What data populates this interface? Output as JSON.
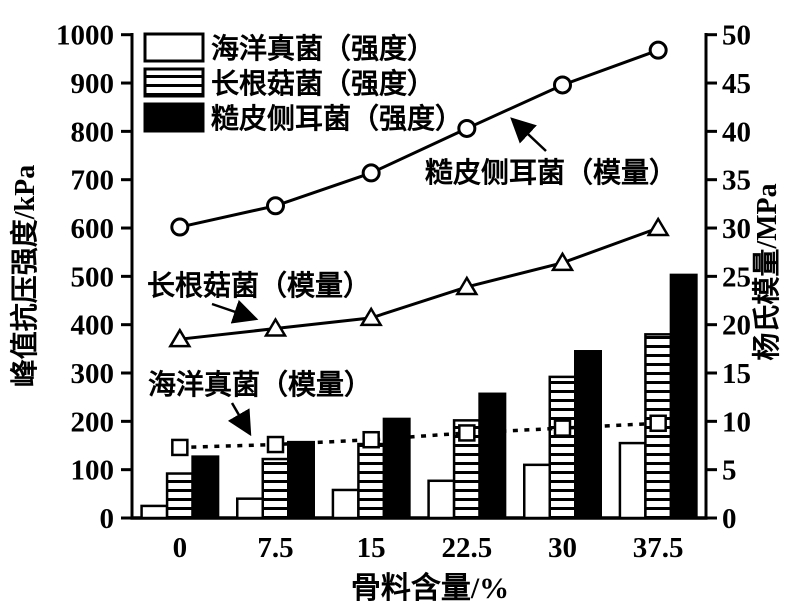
{
  "figure": {
    "background": "#ffffff",
    "foreground": "#000000",
    "annotations": [
      {
        "text": "糙皮侧耳菌（模量）",
        "points_to": "circle-marker line"
      },
      {
        "text": "长根菇菌（模量）",
        "points_to": "triangle-marker line"
      },
      {
        "text": "海洋真菌（模量）",
        "points_to": "square-marker dashed line"
      }
    ]
  },
  "chart_data": {
    "type": "bar+line",
    "grid": false,
    "legend_position": "top-left-inside",
    "categories": [
      "0",
      "7.5",
      "15",
      "22.5",
      "30",
      "37.5"
    ],
    "x_axis": {
      "label": "骨料含量/%"
    },
    "left_axis": {
      "label": "峰值抗压强度/kPa",
      "min": 0,
      "max": 1000,
      "tick_step": 100
    },
    "right_axis": {
      "label": "杨氏模量/MPa",
      "min": 0,
      "max": 50,
      "tick_step": 5
    },
    "bar_series": [
      {
        "name": "海洋真菌（强度）",
        "axis": "left",
        "unit": "kPa",
        "style": "white",
        "values": [
          25,
          40,
          58,
          77,
          110,
          155
        ]
      },
      {
        "name": "长根菇菌（强度）",
        "axis": "left",
        "unit": "kPa",
        "style": "horizontal-stripes",
        "values": [
          92,
          122,
          153,
          202,
          292,
          380
        ]
      },
      {
        "name": "糙皮侧耳菌（强度）",
        "axis": "left",
        "unit": "kPa",
        "style": "solid-black",
        "values": [
          127,
          157,
          205,
          257,
          345,
          503
        ]
      }
    ],
    "line_series": [
      {
        "name": "海洋真菌（模量）",
        "axis": "right",
        "unit": "MPa",
        "marker": "square",
        "line": "dashed",
        "values": [
          7.3,
          7.6,
          8.1,
          8.8,
          9.3,
          9.8
        ]
      },
      {
        "name": "长根菇菌（模量）",
        "axis": "right",
        "unit": "MPa",
        "marker": "triangle",
        "line": "solid",
        "values": [
          18.5,
          19.6,
          20.7,
          23.9,
          26.4,
          30.0
        ]
      },
      {
        "name": "糙皮侧耳菌（模量）",
        "axis": "right",
        "unit": "MPa",
        "marker": "circle",
        "line": "solid",
        "values": [
          30.1,
          32.3,
          35.7,
          40.3,
          44.8,
          48.4
        ]
      }
    ]
  }
}
